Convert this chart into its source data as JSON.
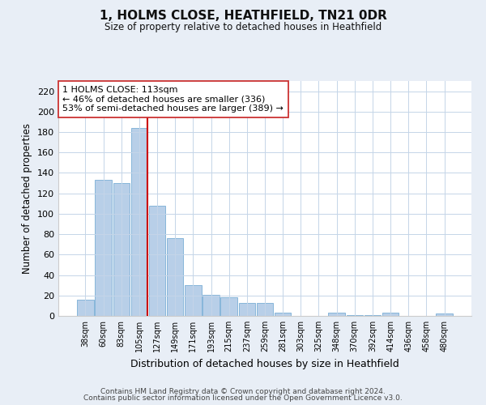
{
  "title": "1, HOLMS CLOSE, HEATHFIELD, TN21 0DR",
  "subtitle": "Size of property relative to detached houses in Heathfield",
  "xlabel": "Distribution of detached houses by size in Heathfield",
  "ylabel": "Number of detached properties",
  "bar_labels": [
    "38sqm",
    "60sqm",
    "83sqm",
    "105sqm",
    "127sqm",
    "149sqm",
    "171sqm",
    "193sqm",
    "215sqm",
    "237sqm",
    "259sqm",
    "281sqm",
    "303sqm",
    "325sqm",
    "348sqm",
    "370sqm",
    "392sqm",
    "414sqm",
    "436sqm",
    "458sqm",
    "480sqm"
  ],
  "bar_values": [
    16,
    133,
    130,
    184,
    108,
    76,
    30,
    21,
    18,
    13,
    13,
    3,
    0,
    0,
    3,
    1,
    1,
    3,
    0,
    0,
    2
  ],
  "bar_color": "#b8cfe8",
  "bar_edge_color": "#7aaed6",
  "vline_color": "#cc0000",
  "ylim": [
    0,
    230
  ],
  "yticks": [
    0,
    20,
    40,
    60,
    80,
    100,
    120,
    140,
    160,
    180,
    200,
    220
  ],
  "annotation_title": "1 HOLMS CLOSE: 113sqm",
  "annotation_line1": "← 46% of detached houses are smaller (336)",
  "annotation_line2": "53% of semi-detached houses are larger (389) →",
  "footnote1": "Contains HM Land Registry data © Crown copyright and database right 2024.",
  "footnote2": "Contains public sector information licensed under the Open Government Licence v3.0.",
  "background_color": "#e8eef6",
  "plot_bg_color": "#ffffff",
  "grid_color": "#c5d5e8"
}
